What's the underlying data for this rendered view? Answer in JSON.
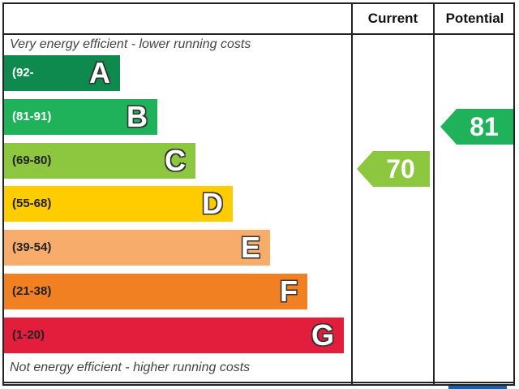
{
  "chart_data": {
    "type": "bar",
    "headers": {
      "current": "Current",
      "potential": "Potential"
    },
    "top_caption": "Very energy efficient - lower running costs",
    "bottom_caption": "Not energy efficient - higher running costs",
    "bands": [
      {
        "letter": "A",
        "range": "(92-",
        "color": "#0f8a4f",
        "text_color": "#ffffff"
      },
      {
        "letter": "B",
        "range": "(81-91)",
        "color": "#1fb25a",
        "text_color": "#ffffff"
      },
      {
        "letter": "C",
        "range": "(69-80)",
        "color": "#8dc63f",
        "text_color": "#222222"
      },
      {
        "letter": "D",
        "range": "(55-68)",
        "color": "#ffcc00",
        "text_color": "#222222"
      },
      {
        "letter": "E",
        "range": "(39-54)",
        "color": "#f7ac6b",
        "text_color": "#222222"
      },
      {
        "letter": "F",
        "range": "(21-38)",
        "color": "#f08022",
        "text_color": "#222222"
      },
      {
        "letter": "G",
        "range": "(1-20)",
        "color": "#e31d3c",
        "text_color": "#222222"
      }
    ],
    "current": {
      "value": 70,
      "band": "C",
      "color": "#8dc63f"
    },
    "potential": {
      "value": 81,
      "band": "B",
      "color": "#1fb25a"
    }
  }
}
